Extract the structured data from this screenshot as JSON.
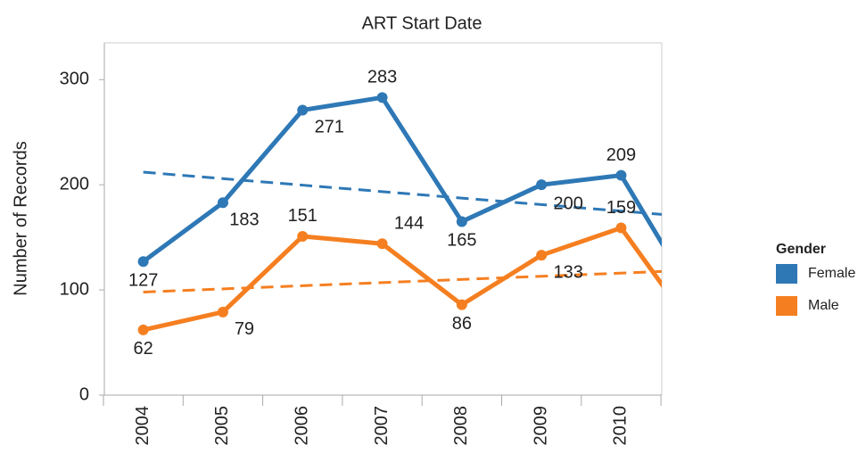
{
  "chart_data": {
    "type": "line",
    "title": "ART Start Date",
    "y_label": "Number of Records",
    "categories": [
      "2004",
      "2005",
      "2006",
      "2007",
      "2008",
      "2009",
      "2010",
      null
    ],
    "series": [
      {
        "name": "Female",
        "color": "#2e78b6",
        "values": [
          127,
          183,
          271,
          283,
          165,
          200,
          209,
          83
        ],
        "trend": [
          212,
          175
        ]
      },
      {
        "name": "Male",
        "color": "#f57f20",
        "values": [
          62,
          79,
          151,
          144,
          86,
          133,
          159,
          54
        ],
        "trend": [
          98,
          116
        ]
      }
    ],
    "ylim": [
      0,
      335
    ],
    "yticks": [
      0,
      100,
      200,
      300
    ],
    "legend_title": "Gender",
    "legend": "right"
  }
}
